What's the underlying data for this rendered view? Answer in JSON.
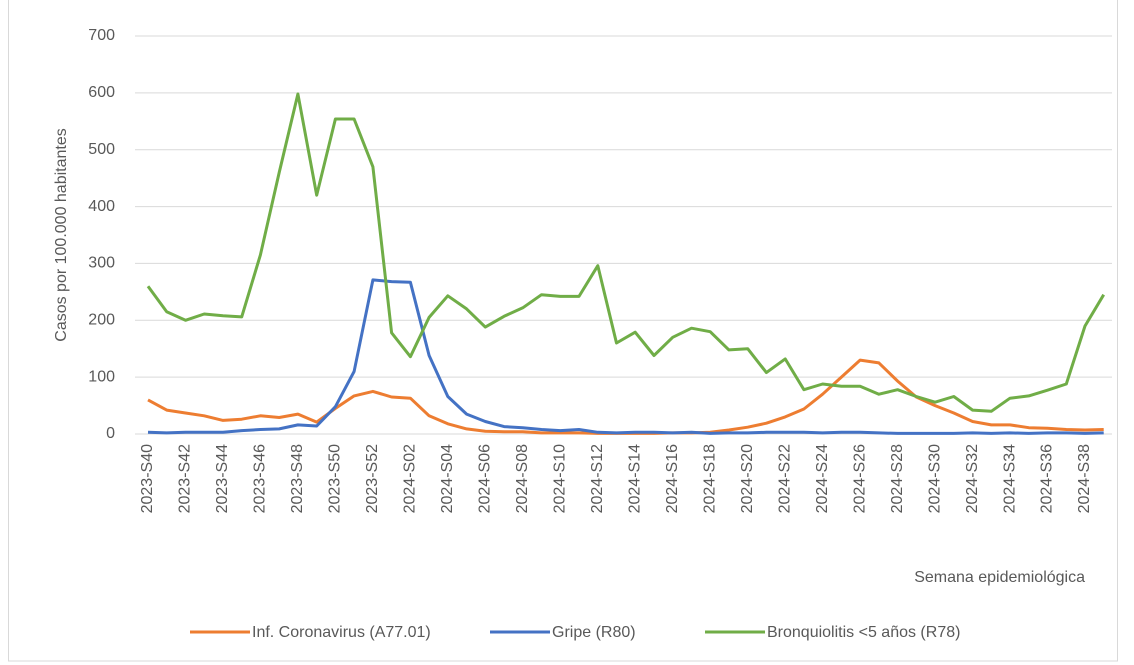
{
  "chart_data": {
    "type": "line",
    "categories": [
      "2023-S40",
      null,
      "2023-S42",
      null,
      "2023-S44",
      null,
      "2023-S46",
      null,
      "2023-S48",
      null,
      "2023-S50",
      null,
      "2023-S52",
      null,
      "2024-S02",
      null,
      "2024-S04",
      null,
      "2024-S06",
      null,
      "2024-S08",
      null,
      "2024-S10",
      null,
      "2024-S12",
      null,
      "2024-S14",
      null,
      "2024-S16",
      null,
      "2024-S18",
      null,
      "2024-S20",
      null,
      "2024-S22",
      null,
      "2024-S24",
      null,
      "2024-S26",
      null,
      "2024-S28",
      null,
      "2024-S30",
      null,
      "2024-S32",
      null,
      "2024-S34",
      null,
      "2024-S36",
      null,
      "2024-S38",
      null
    ],
    "series": [
      {
        "name": "Inf. Coronavirus (A77.01)",
        "color": "#ed7d31",
        "values": [
          60,
          42,
          37,
          32,
          24,
          26,
          32,
          29,
          35,
          21,
          45,
          67,
          75,
          65,
          63,
          32,
          18,
          9,
          5,
          4,
          4,
          2,
          2,
          2,
          1,
          1,
          1,
          1,
          2,
          2,
          3,
          7,
          12,
          19,
          30,
          44,
          70,
          100,
          130,
          125,
          93,
          65,
          50,
          37,
          22,
          16,
          16,
          11,
          10,
          8,
          7,
          8
        ]
      },
      {
        "name": "Gripe (R80)",
        "color": "#4472c4",
        "values": [
          3,
          2,
          3,
          3,
          3,
          6,
          8,
          9,
          16,
          14,
          48,
          110,
          271,
          268,
          267,
          138,
          66,
          35,
          22,
          13,
          11,
          8,
          6,
          8,
          3,
          2,
          3,
          3,
          2,
          3,
          1,
          2,
          2,
          3,
          3,
          3,
          2,
          3,
          3,
          2,
          1,
          1,
          1,
          1,
          2,
          1,
          2,
          1,
          2,
          2,
          1,
          2
        ]
      },
      {
        "name": "Bronquiolitis <5 años (R78)",
        "color": "#70ad47",
        "values": [
          260,
          215,
          200,
          211,
          208,
          206,
          315,
          460,
          598,
          420,
          554,
          554,
          470,
          178,
          136,
          205,
          243,
          220,
          188,
          207,
          222,
          245,
          242,
          242,
          296,
          160,
          179,
          138,
          170,
          186,
          180,
          148,
          150,
          108,
          132,
          78,
          88,
          84,
          84,
          70,
          78,
          66,
          56,
          66,
          42,
          40,
          63,
          67,
          77,
          88,
          190,
          245
        ]
      }
    ],
    "y_label": "Casos por 100.000 habitantes",
    "x_label": "Semana epidemiológica",
    "ylim": [
      0,
      700
    ],
    "yticks": [
      0,
      100,
      200,
      300,
      400,
      500,
      600,
      700
    ],
    "grid": true,
    "legend": "bottom"
  }
}
